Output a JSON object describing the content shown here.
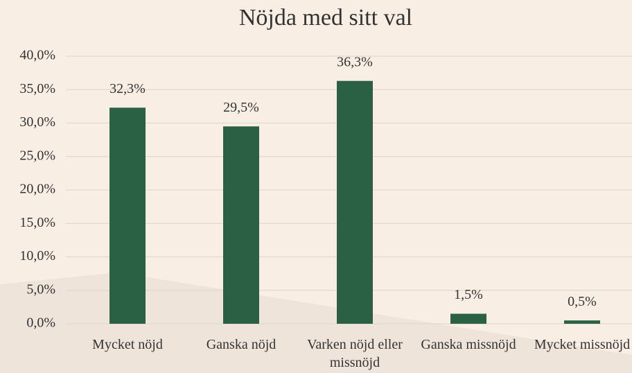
{
  "chart_data": {
    "type": "bar",
    "title": "Nöjda med sitt val",
    "categories": [
      "Mycket nöjd",
      "Ganska nöjd",
      "Varken nöjd eller missnöjd",
      "Ganska missnöjd",
      "Mycket missnöjd"
    ],
    "values": [
      32.3,
      29.5,
      36.3,
      1.5,
      0.5
    ],
    "value_labels": [
      "32,3%",
      "29,5%",
      "36,3%",
      "1,5%",
      "0,5%"
    ],
    "color": "#2a6145",
    "ylim": [
      0,
      40
    ],
    "yticks": [
      {
        "value": 0,
        "label": "0,0%"
      },
      {
        "value": 5,
        "label": "5,0%"
      },
      {
        "value": 10,
        "label": "10,0%"
      },
      {
        "value": 15,
        "label": "15,0%"
      },
      {
        "value": 20,
        "label": "20,0%"
      },
      {
        "value": 25,
        "label": "25,0%"
      },
      {
        "value": 30,
        "label": "30,0%"
      },
      {
        "value": 35,
        "label": "35,0%"
      },
      {
        "value": 40,
        "label": "40,0%"
      }
    ],
    "grid": true
  }
}
